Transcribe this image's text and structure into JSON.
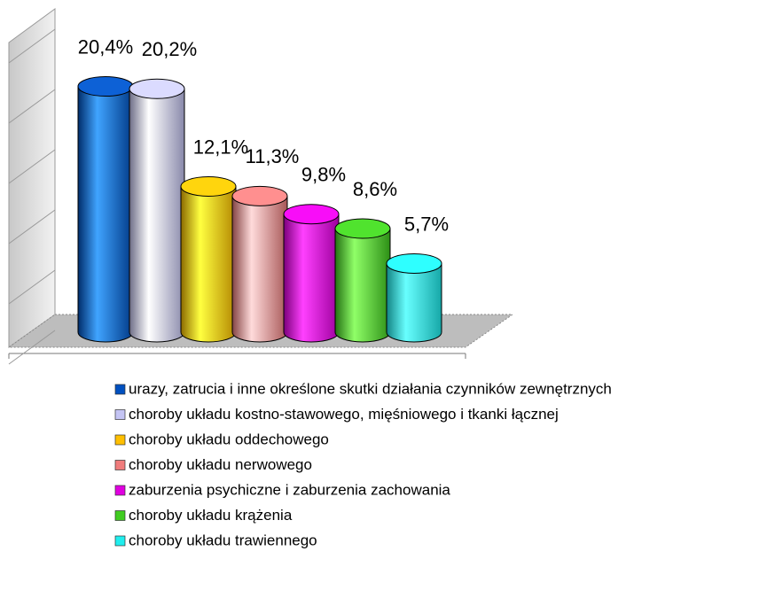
{
  "chart_data": {
    "type": "bar",
    "categories": [
      "urazy, zatrucia i inne określone skutki działania czynników zewnętrznych",
      "choroby układu kostno-stawowego, mięśniowego i tkanki łącznej",
      "choroby układu oddechowego",
      "choroby układu nerwowego",
      "zaburzenia psychiczne i zaburzenia zachowania",
      "choroby układu krążenia",
      "choroby układu trawiennego"
    ],
    "values": [
      20.4,
      20.2,
      12.1,
      11.3,
      9.8,
      8.6,
      5.7
    ],
    "value_labels": [
      "20,4%",
      "20,2%",
      "12,1%",
      "11,3%",
      "9,8%",
      "8,6%",
      "5,7%"
    ],
    "colors": [
      "#0050c0",
      "#c4c4f4",
      "#ffbf00",
      "#f07c7c",
      "#e000e0",
      "#40cc20",
      "#20eeee"
    ],
    "ylim": [
      0,
      25
    ],
    "yticks": [
      0,
      5,
      10,
      15,
      20,
      25
    ]
  }
}
